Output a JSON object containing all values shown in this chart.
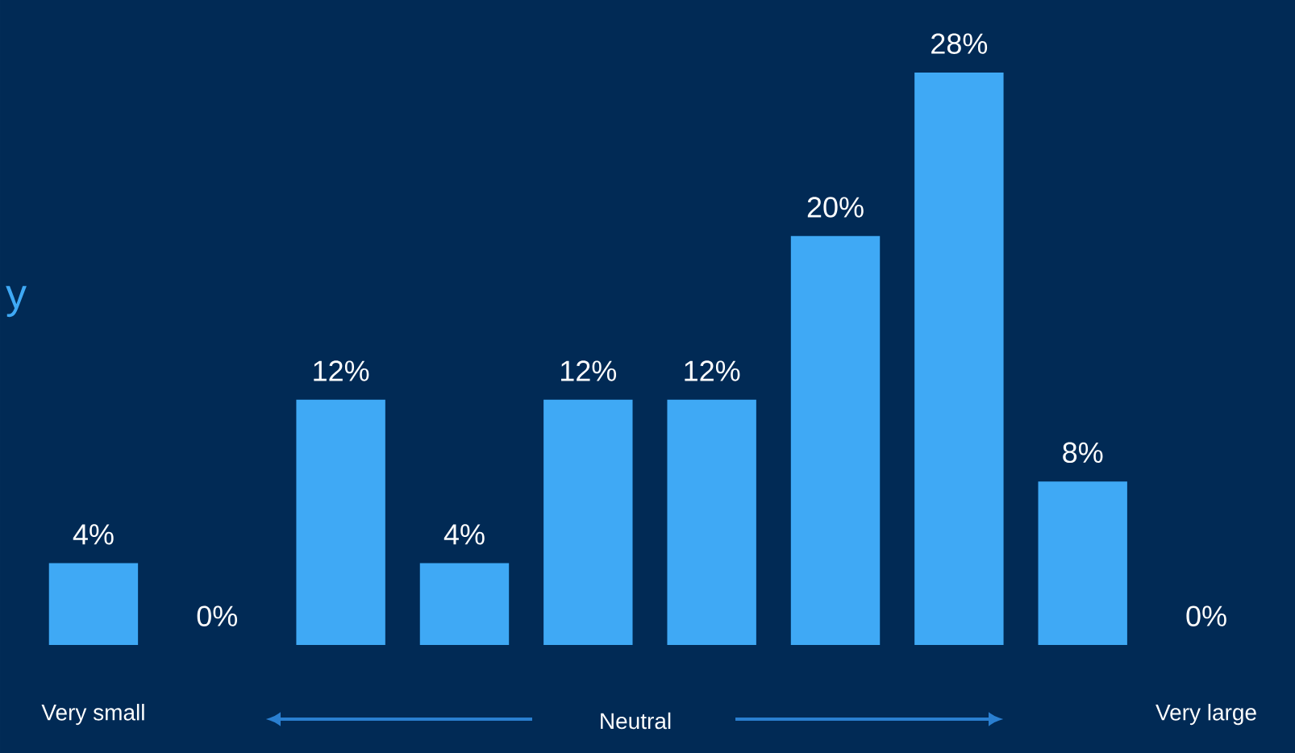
{
  "chart_data": {
    "type": "bar",
    "categories": [
      "Very small",
      null,
      null,
      null,
      null,
      null,
      null,
      null,
      null,
      "Very large"
    ],
    "values": [
      4,
      0,
      12,
      4,
      12,
      12,
      20,
      28,
      8,
      0
    ],
    "value_labels": [
      "4%",
      "0%",
      "12%",
      "4%",
      "12%",
      "12%",
      "20%",
      "28%",
      "8%",
      "0%"
    ],
    "color": "#3fa9f5",
    "annotations": [
      "Neutral",
      "y"
    ]
  }
}
